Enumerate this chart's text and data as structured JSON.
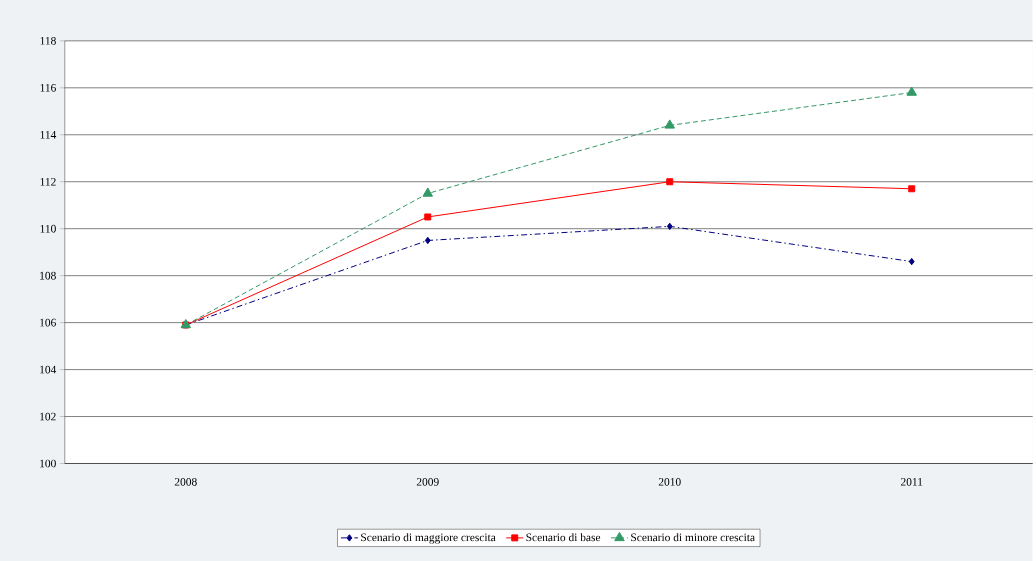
{
  "chart_data": {
    "type": "line",
    "categories": [
      "2008",
      "2009",
      "2010",
      "2011"
    ],
    "series": [
      {
        "name": "Scenario di maggiore crescita",
        "color": "#000080",
        "values": [
          105.9,
          109.5,
          110.1,
          108.6
        ],
        "marker": "diamond",
        "line_style": "dashdot"
      },
      {
        "name": "Scenario di base",
        "color": "#ff0000",
        "values": [
          105.9,
          110.5,
          112.0,
          111.7
        ],
        "marker": "square",
        "line_style": "solid"
      },
      {
        "name": "Scenario di minore crescita",
        "color": "#339966",
        "values": [
          105.9,
          111.5,
          114.4,
          115.8
        ],
        "marker": "triangle",
        "line_style": "dashed"
      }
    ],
    "ylim": [
      100,
      118
    ],
    "yticks": [
      100,
      102,
      104,
      106,
      108,
      110,
      112,
      114,
      116,
      118
    ],
    "grid": "y",
    "legend": "bottom"
  }
}
